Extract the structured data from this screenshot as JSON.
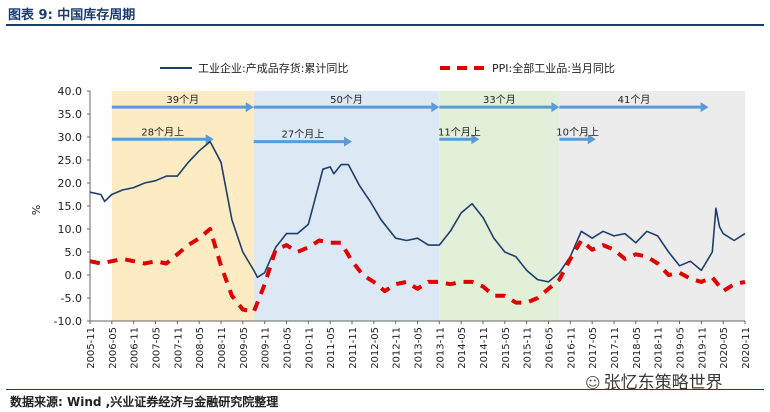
{
  "header": {
    "title": "图表 9:  中国库存周期"
  },
  "footer": {
    "source": "数据来源: Wind ,兴业证券经济与金融研究院整理",
    "watermark": "张忆东策略世界"
  },
  "colors": {
    "inventory_line": "#1f3f6b",
    "ppi_line": "#e00000",
    "arrow": "#5b9bd5",
    "phase1": "#fdebc4",
    "phase2": "#dde8f5",
    "phase3": "#e2f0d9",
    "phase4": "#ececec"
  },
  "chart_data": {
    "type": "line",
    "title": "中国库存周期",
    "ylabel": "%",
    "ylim": [
      -10,
      40
    ],
    "yticks": [
      "40.0",
      "35.0",
      "30.0",
      "25.0",
      "20.0",
      "15.0",
      "10.0",
      "5.0",
      "0.0",
      "-5.0",
      "-10.0"
    ],
    "xrange": [
      "2005-11",
      "2020-11"
    ],
    "xticks": [
      "2005-11",
      "2006-05",
      "2006-11",
      "2007-05",
      "2007-11",
      "2008-05",
      "2008-11",
      "2009-05",
      "2009-11",
      "2010-05",
      "2010-11",
      "2011-05",
      "2011-11",
      "2012-05",
      "2012-11",
      "2013-05",
      "2013-11",
      "2014-05",
      "2014-11",
      "2015-05",
      "2015-11",
      "2016-05",
      "2016-11",
      "2017-05",
      "2017-11",
      "2018-05",
      "2018-11",
      "2019-05",
      "2019-11",
      "2020-05",
      "2020-11"
    ],
    "legend": {
      "placement": "top",
      "entries": [
        "工业企业:产成品存货:累计同比",
        "PPI:全部工业品:当月同比"
      ]
    },
    "series": [
      {
        "name": "工业企业:产成品存货:累计同比",
        "style": "solid",
        "points": [
          [
            "2005-11",
            18.0
          ],
          [
            "2006-02",
            17.5
          ],
          [
            "2006-03",
            16.0
          ],
          [
            "2006-05",
            17.5
          ],
          [
            "2006-08",
            18.5
          ],
          [
            "2006-11",
            19.0
          ],
          [
            "2007-02",
            20.0
          ],
          [
            "2007-05",
            20.5
          ],
          [
            "2007-08",
            21.5
          ],
          [
            "2007-11",
            21.5
          ],
          [
            "2008-02",
            24.5
          ],
          [
            "2008-05",
            27.0
          ],
          [
            "2008-08",
            29.0
          ],
          [
            "2008-10",
            26.0
          ],
          [
            "2008-11",
            24.5
          ],
          [
            "2009-02",
            12.0
          ],
          [
            "2009-05",
            5.0
          ],
          [
            "2009-08",
            1.0
          ],
          [
            "2009-09",
            -0.5
          ],
          [
            "2009-11",
            0.5
          ],
          [
            "2010-02",
            6.0
          ],
          [
            "2010-05",
            9.0
          ],
          [
            "2010-08",
            9.0
          ],
          [
            "2010-11",
            11.0
          ],
          [
            "2011-02",
            20.0
          ],
          [
            "2011-03",
            23.0
          ],
          [
            "2011-05",
            23.5
          ],
          [
            "2011-06",
            22.0
          ],
          [
            "2011-08",
            24.0
          ],
          [
            "2011-10",
            24.0
          ],
          [
            "2012-01",
            19.5
          ],
          [
            "2012-04",
            16.0
          ],
          [
            "2012-07",
            12.0
          ],
          [
            "2012-11",
            8.0
          ],
          [
            "2013-02",
            7.5
          ],
          [
            "2013-05",
            8.0
          ],
          [
            "2013-08",
            6.5
          ],
          [
            "2013-11",
            6.5
          ],
          [
            "2014-02",
            9.5
          ],
          [
            "2014-05",
            13.5
          ],
          [
            "2014-08",
            15.5
          ],
          [
            "2014-11",
            12.5
          ],
          [
            "2015-02",
            8.0
          ],
          [
            "2015-05",
            5.0
          ],
          [
            "2015-08",
            4.0
          ],
          [
            "2015-11",
            1.0
          ],
          [
            "2016-02",
            -1.0
          ],
          [
            "2016-05",
            -1.5
          ],
          [
            "2016-08",
            0.5
          ],
          [
            "2016-11",
            4.0
          ],
          [
            "2017-02",
            9.5
          ],
          [
            "2017-05",
            8.0
          ],
          [
            "2017-08",
            9.5
          ],
          [
            "2017-11",
            8.5
          ],
          [
            "2018-02",
            9.0
          ],
          [
            "2018-05",
            7.0
          ],
          [
            "2018-08",
            9.5
          ],
          [
            "2018-11",
            8.5
          ],
          [
            "2019-02",
            5.0
          ],
          [
            "2019-05",
            2.0
          ],
          [
            "2019-08",
            3.0
          ],
          [
            "2019-11",
            1.0
          ],
          [
            "2020-02",
            5.0
          ],
          [
            "2020-03",
            14.5
          ],
          [
            "2020-04",
            10.5
          ],
          [
            "2020-05",
            9.0
          ],
          [
            "2020-08",
            7.5
          ],
          [
            "2020-11",
            9.0
          ]
        ]
      },
      {
        "name": "PPI:全部工业品:当月同比",
        "style": "dashed",
        "points": [
          [
            "2005-11",
            3.0
          ],
          [
            "2006-02",
            2.5
          ],
          [
            "2006-05",
            3.0
          ],
          [
            "2006-08",
            3.5
          ],
          [
            "2006-11",
            3.0
          ],
          [
            "2007-02",
            2.5
          ],
          [
            "2007-05",
            3.0
          ],
          [
            "2007-08",
            2.5
          ],
          [
            "2007-11",
            4.5
          ],
          [
            "2008-02",
            6.5
          ],
          [
            "2008-05",
            8.0
          ],
          [
            "2008-08",
            10.0
          ],
          [
            "2008-11",
            2.0
          ],
          [
            "2009-02",
            -4.5
          ],
          [
            "2009-05",
            -7.5
          ],
          [
            "2009-08",
            -8.0
          ],
          [
            "2009-11",
            -2.0
          ],
          [
            "2010-02",
            5.5
          ],
          [
            "2010-05",
            6.5
          ],
          [
            "2010-08",
            5.0
          ],
          [
            "2010-11",
            6.0
          ],
          [
            "2011-02",
            7.5
          ],
          [
            "2011-05",
            7.0
          ],
          [
            "2011-08",
            7.0
          ],
          [
            "2011-11",
            3.0
          ],
          [
            "2012-02",
            0.0
          ],
          [
            "2012-05",
            -1.5
          ],
          [
            "2012-08",
            -3.5
          ],
          [
            "2012-11",
            -2.0
          ],
          [
            "2013-02",
            -1.5
          ],
          [
            "2013-05",
            -3.0
          ],
          [
            "2013-08",
            -1.5
          ],
          [
            "2013-11",
            -1.5
          ],
          [
            "2014-02",
            -2.0
          ],
          [
            "2014-05",
            -1.5
          ],
          [
            "2014-08",
            -1.5
          ],
          [
            "2014-11",
            -2.5
          ],
          [
            "2015-02",
            -4.5
          ],
          [
            "2015-05",
            -4.5
          ],
          [
            "2015-08",
            -6.0
          ],
          [
            "2015-11",
            -6.0
          ],
          [
            "2016-02",
            -5.0
          ],
          [
            "2016-05",
            -3.0
          ],
          [
            "2016-08",
            -1.0
          ],
          [
            "2016-11",
            3.5
          ],
          [
            "2017-02",
            7.5
          ],
          [
            "2017-05",
            5.5
          ],
          [
            "2017-08",
            6.5
          ],
          [
            "2017-11",
            5.5
          ],
          [
            "2018-02",
            3.5
          ],
          [
            "2018-05",
            4.5
          ],
          [
            "2018-08",
            4.0
          ],
          [
            "2018-11",
            2.5
          ],
          [
            "2019-02",
            0.0
          ],
          [
            "2019-05",
            0.5
          ],
          [
            "2019-08",
            -0.8
          ],
          [
            "2019-11",
            -1.5
          ],
          [
            "2020-02",
            -0.5
          ],
          [
            "2020-05",
            -3.5
          ],
          [
            "2020-08",
            -2.0
          ],
          [
            "2020-11",
            -1.5
          ]
        ]
      }
    ],
    "phases": [
      {
        "start": "2006-05",
        "end": "2009-08",
        "color_key": "phase1"
      },
      {
        "start": "2009-08",
        "end": "2013-11",
        "color_key": "phase2"
      },
      {
        "start": "2013-11",
        "end": "2016-08",
        "color_key": "phase3"
      },
      {
        "start": "2016-08",
        "end": "2020-11",
        "color_key": "phase4"
      }
    ],
    "annotations": [
      {
        "label": "39个月",
        "from": "2006-05",
        "to": "2009-08",
        "y": 36.5
      },
      {
        "label": "28个月上",
        "from": "2006-05",
        "to": "2008-09",
        "y": 29.5
      },
      {
        "label": "50个月",
        "from": "2009-08",
        "to": "2013-11",
        "y": 36.5
      },
      {
        "label": "27个月上",
        "from": "2009-08",
        "to": "2011-11",
        "y": 29.0
      },
      {
        "label": "33个月",
        "from": "2013-11",
        "to": "2016-08",
        "y": 36.5
      },
      {
        "label": "11个月上",
        "from": "2013-11",
        "to": "2014-10",
        "y": 29.5
      },
      {
        "label": "41个月",
        "from": "2016-08",
        "to": "2020-01",
        "y": 36.5
      },
      {
        "label": "10个月上",
        "from": "2016-08",
        "to": "2017-06",
        "y": 29.5
      }
    ]
  }
}
